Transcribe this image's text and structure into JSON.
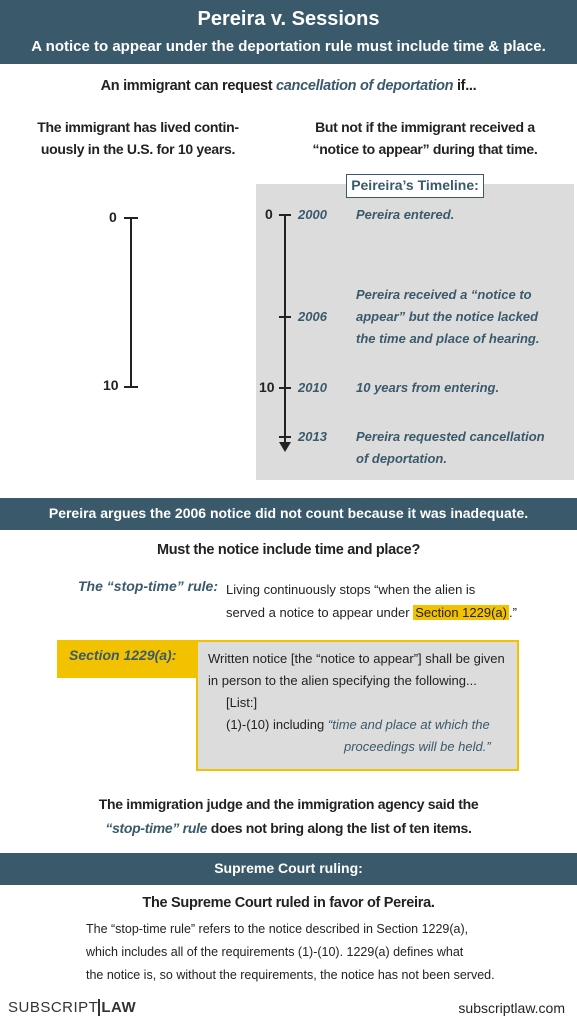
{
  "header": {
    "title": "Pereira v. Sessions",
    "subtitle": "A notice to appear under the deportation rule must include time & place."
  },
  "intro": {
    "before": "An immigrant can request ",
    "emph": "cancellation of deportation",
    "after": " if..."
  },
  "left_col": {
    "line1": "The immigrant has lived contin-",
    "line2": "uously in the U.S. for 10 years.",
    "axis_top": "0",
    "axis_bottom": "10"
  },
  "right_col": {
    "line1": "But not if the immigrant received a",
    "line2": "“notice to appear” during that time."
  },
  "timeline": {
    "title": "Peireira’s Timeline:",
    "axis_zero": "0",
    "axis_ten": "10",
    "events": [
      {
        "year": "2000",
        "lines": [
          "Pereira entered."
        ]
      },
      {
        "year": "2006",
        "lines": [
          "Pereira received a “notice to",
          "appear” but the notice lacked",
          "the time and place of hearing."
        ]
      },
      {
        "year": "2010",
        "lines": [
          "10 years from entering."
        ]
      },
      {
        "year": "2013",
        "lines": [
          "Pereira requested cancellation",
          "of deportation."
        ]
      }
    ]
  },
  "argument_band": "Pereira argues the 2006 notice did not count because it was inadequate.",
  "question": "Must the notice include time and place?",
  "stop_time": {
    "label": "The “stop-time” rule:",
    "line1": "Living continuously stops “when the alien is",
    "line2_before": "served a notice to appear under ",
    "line2_highlight": "Section 1229(a)",
    "line2_after": ".”"
  },
  "section": {
    "label": "Section 1229(a):",
    "line1": "Written notice [the “notice to appear”] shall be given",
    "line2": "in person to the alien specifying the following...",
    "line3": "[List:]",
    "line4_before": "(1)-(10) including ",
    "line4_emph": "“time and place at which the",
    "line5_emph": "proceedings will be held.”"
  },
  "judge": {
    "line1": "The immigration judge and the immigration agency said the",
    "line2_emph": "“stop-time” rule",
    "line2_after": " does not bring along the list of ten items."
  },
  "ruling_band": "Supreme Court ruling:",
  "ruling": {
    "headline": "The Supreme Court ruled in favor of Pereira.",
    "line1": "The “stop-time rule” refers to the notice described in Section 1229(a),",
    "line2": "which includes all of the requirements (1)-(10). 1229(a) defines what",
    "line3": "the notice is, so without the requirements, the notice has not been served."
  },
  "footer": {
    "brand_a": "SUBSCRIPT",
    "brand_b": "LAW",
    "url": "subscriptlaw.com"
  },
  "colors": {
    "teal": "#3a5a6c",
    "highlight": "#f2c200",
    "timeline_bg": "#dcdcdc"
  }
}
